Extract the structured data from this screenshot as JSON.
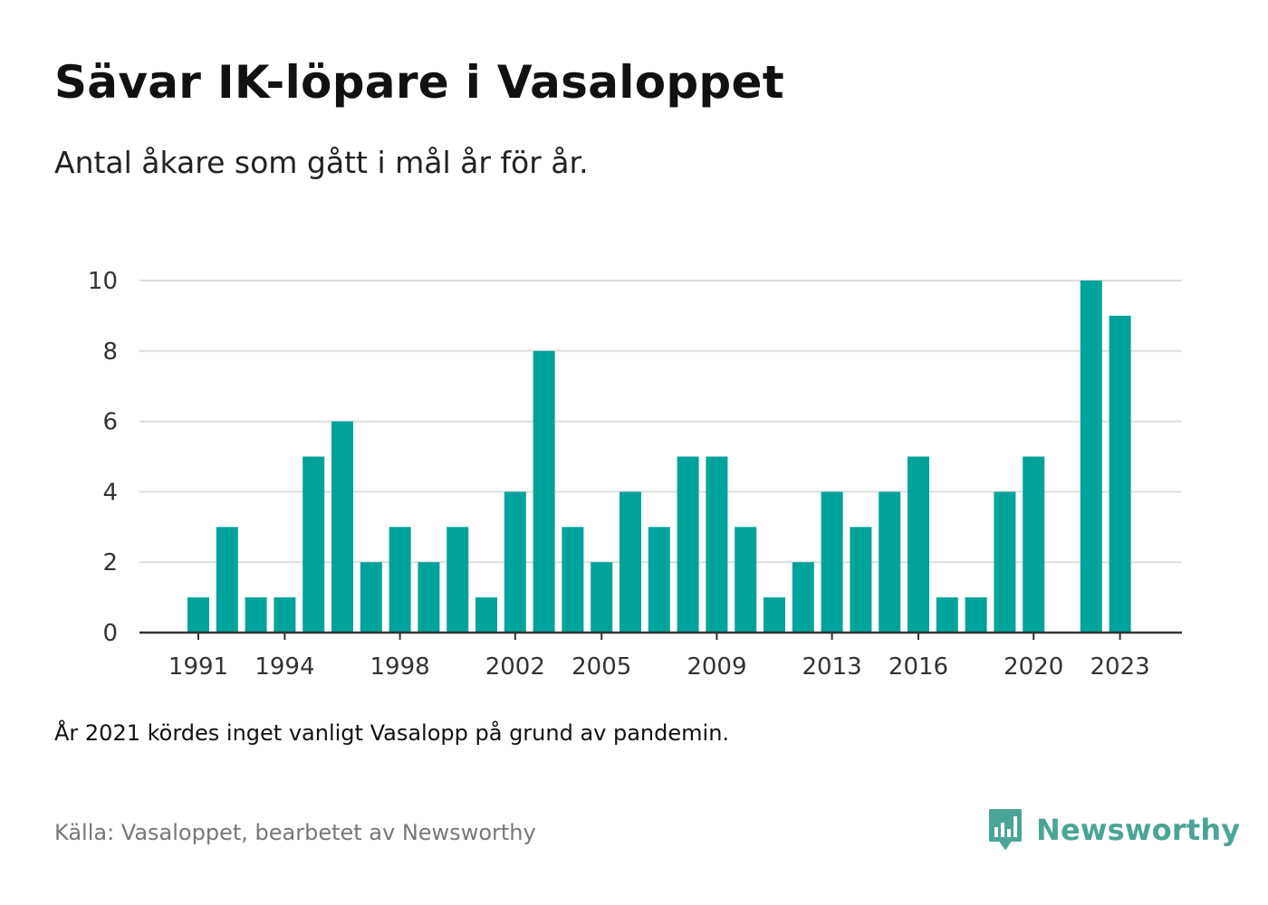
{
  "title": "Sävar IK-löpare i Vasaloppet",
  "subtitle": "Antal åkare som gått i mål år för år.",
  "note": "År 2021 kördes inget vanligt Vasalopp på grund av pandemin.",
  "source": "Källa: Vasaloppet, bearbetet av Newsworthy",
  "brand": {
    "name": "Newsworthy",
    "icon": "newsworthy-logo-icon",
    "color": "#4aa596"
  },
  "colors": {
    "bar": "#00a39a",
    "grid": "#dddddd",
    "axis": "#333333"
  },
  "chart_data": {
    "type": "bar",
    "title": "Sävar IK-löpare i Vasaloppet",
    "subtitle": "Antal åkare som gått i mål år för år.",
    "xlabel": "",
    "ylabel": "",
    "ylim": [
      0,
      10
    ],
    "yticks": [
      0,
      2,
      4,
      6,
      8,
      10
    ],
    "xticks": [
      1991,
      1994,
      1998,
      2002,
      2005,
      2009,
      2013,
      2016,
      2020,
      2023
    ],
    "grid": true,
    "categories": [
      1991,
      1992,
      1993,
      1994,
      1995,
      1996,
      1997,
      1998,
      1999,
      2000,
      2001,
      2002,
      2003,
      2004,
      2005,
      2006,
      2007,
      2008,
      2009,
      2010,
      2011,
      2012,
      2013,
      2014,
      2015,
      2016,
      2017,
      2018,
      2019,
      2020,
      2021,
      2022,
      2023
    ],
    "values": [
      1,
      3,
      1,
      1,
      5,
      6,
      2,
      3,
      2,
      3,
      1,
      4,
      8,
      3,
      2,
      4,
      3,
      5,
      5,
      3,
      1,
      2,
      4,
      3,
      4,
      5,
      1,
      1,
      4,
      5,
      null,
      10,
      9
    ]
  }
}
